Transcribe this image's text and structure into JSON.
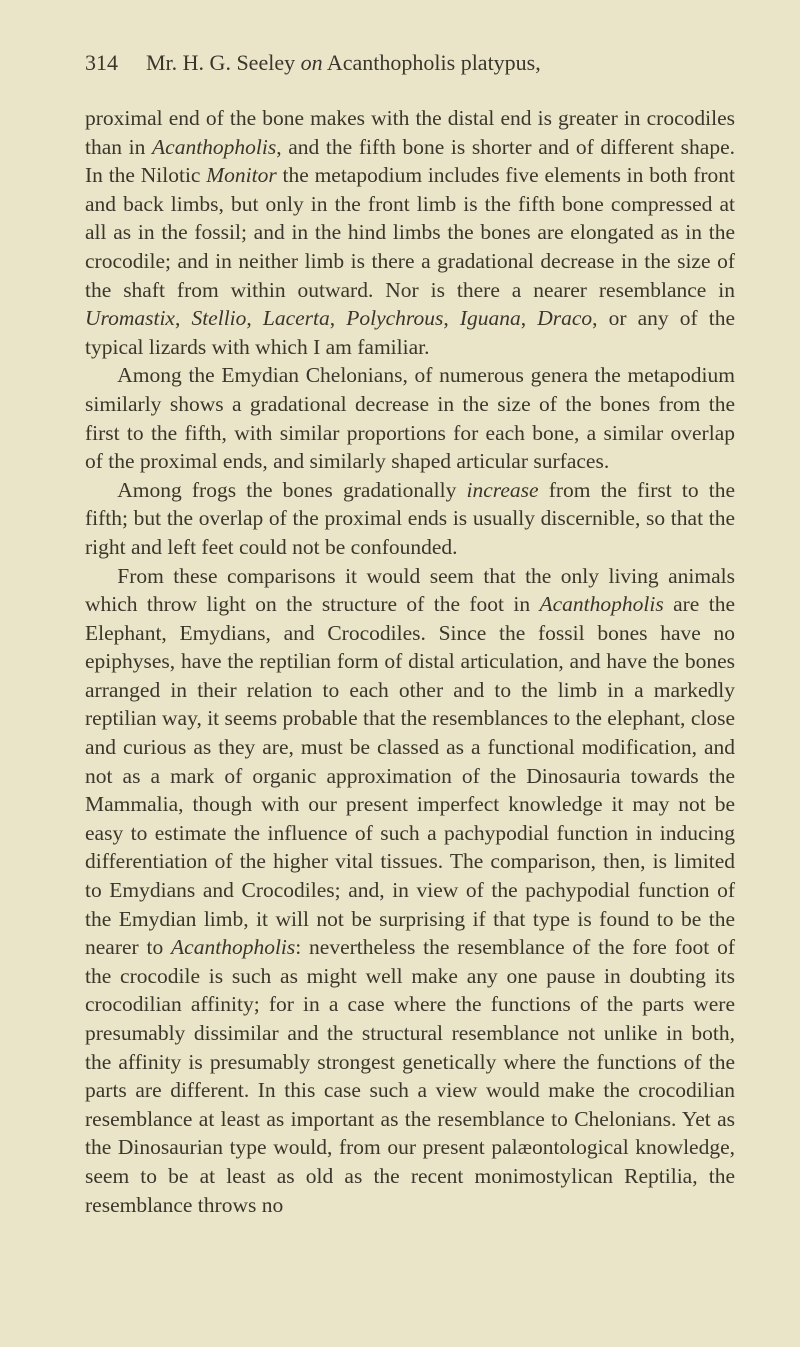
{
  "page_number": "314",
  "header_author": "Mr. H. G. Seeley ",
  "header_on": "on",
  "header_subject": " Acanthopholis platypus,",
  "para1_a": "proximal end of the bone makes with the distal end is greater in crocodiles than in ",
  "para1_b": "Acanthopholis",
  "para1_c": ", and the fifth bone is shorter and of different shape. In the Nilotic ",
  "para1_d": "Monitor",
  "para1_e": " the metapodium includes five elements in both front and back limbs, but only in the front limb is the fifth bone compressed at all as in the fossil; and in the hind limbs the bones are elongated as in the crocodile; and in neither limb is there a gradational decrease in the size of the shaft from within out­ward. Nor is there a nearer resemblance in ",
  "para1_f": "Uromastix",
  "para1_g": ", ",
  "para1_h": "Stellio",
  "para1_i": ", ",
  "para1_j": "Lacerta",
  "para1_k": ", ",
  "para1_l": "Polychrous",
  "para1_m": ", ",
  "para1_n": "Iguana",
  "para1_o": ", ",
  "para1_p": "Draco",
  "para1_q": ", or any of the typical lizards with which I am familiar.",
  "para2": "Among the Emydian Chelonians, of numerous genera the metapodium similarly shows a gradational decrease in the size of the bones from the first to the fifth, with similar proportions for each bone, a similar overlap of the proximal ends, and similarly shaped articular surfaces.",
  "para3_a": "Among frogs the bones gradationally ",
  "para3_b": "increase",
  "para3_c": " from the first to the fifth; but the overlap of the proximal ends is usually discernible, so that the right and left feet could not be con­founded.",
  "para4_a": "From these comparisons it would seem that the only living animals which throw light on the structure of the foot in ",
  "para4_b": "Acanthopholis",
  "para4_c": " are the Elephant, Emydians, and Crocodiles. Since the fossil bones have no epiphyses, have the reptilian form of distal articulation, and have the bones arranged in their relation to each other and to the limb in a markedly reptilian way, it seems probable that the resemblances to the elephant, close and curious as they are, must be classed as a functional modification, and not as a mark of organic approxi­mation of the Dinosauria towards the Mammalia, though with our present imperfect knowledge it may not be easy to estimate the influence of such a pachypodial function in in­ducing differentiation of the higher vital tissues. The com­parison, then, is limited to Emydians and Crocodiles; and, in view of the pachypodial function of the Emydian limb, it will not be surprising if that type is found to be the nearer to ",
  "para4_d": "Acanthopholis",
  "para4_e": ": nevertheless the resemblance of the fore foot of the crocodile is such as might well make any one pause in doubting its crocodilian affinity; for in a case where the func­tions of the parts were presumably dissimilar and the struc­tural resemblance not unlike in both, the affinity is presumably strongest genetically where the functions of the parts are dif­ferent. In this case such a view would make the crocodilian resemblance at least as important as the resemblance to Chelo­nians. Yet as the Dinosaurian type would, from our present palæontological knowledge, seem to be at least as old as the recent monimostylican Reptilia, the resemblance throws no"
}
